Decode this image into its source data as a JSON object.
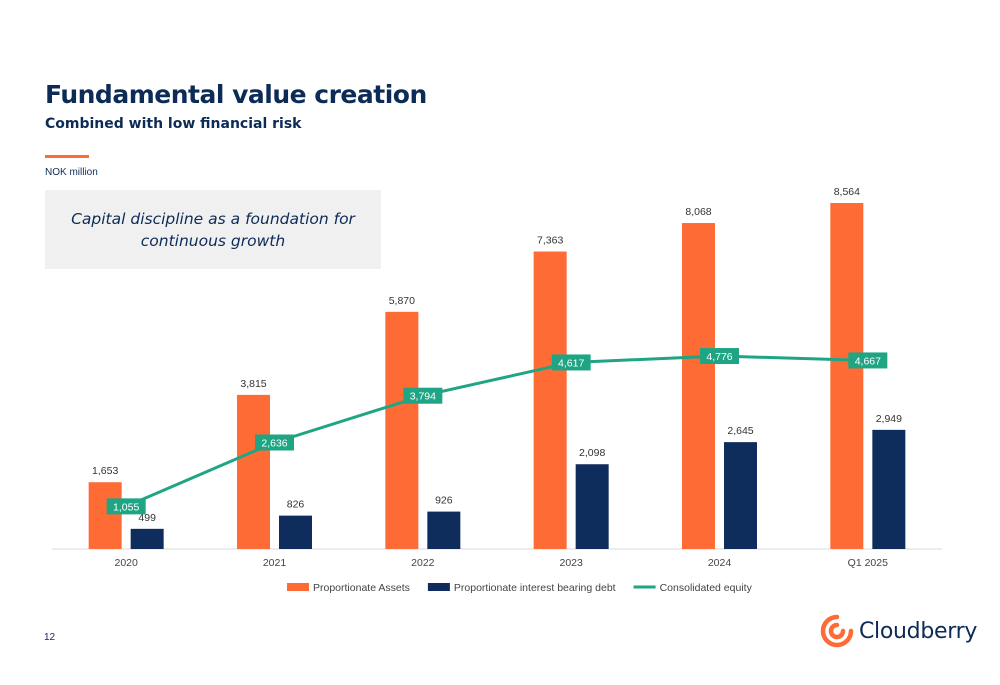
{
  "title": "Fundamental value creation",
  "subtitle": "Combined with low financial risk",
  "units": "NOK million",
  "callout": "Capital discipline as a foundation for continuous growth",
  "page_number": "12",
  "logo_text": "Cloudberry",
  "colors": {
    "assets": "#ff6b35",
    "debt": "#0f2d5c",
    "equity": "#1fa584",
    "accent": "#ff6b35",
    "text": "#0d2b57"
  },
  "chart_data": {
    "type": "bar",
    "title": "",
    "xlabel": "",
    "ylabel": "",
    "categories": [
      "2020",
      "2021",
      "2022",
      "2023",
      "2024",
      "Q1 2025"
    ],
    "series": [
      {
        "name": "Proportionate Assets",
        "type": "bar",
        "values": [
          1653,
          3815,
          5870,
          7363,
          8068,
          8564
        ],
        "labels": [
          "1,653",
          "3,815",
          "5,870",
          "7,363",
          "8,068",
          "8,564"
        ]
      },
      {
        "name": "Proportionate interest bearing debt",
        "type": "bar",
        "values": [
          499,
          826,
          926,
          2098,
          2645,
          2949
        ],
        "labels": [
          "499",
          "826",
          "926",
          "2,098",
          "2,645",
          "2,949"
        ]
      },
      {
        "name": "Consolidated equity",
        "type": "line",
        "values": [
          1055,
          2636,
          3794,
          4617,
          4776,
          4667
        ],
        "labels": [
          "1,055",
          "2,636",
          "3,794",
          "4,617",
          "4,776",
          "4,667"
        ]
      }
    ],
    "ylim": [
      0,
      8564
    ],
    "grid": false,
    "legend_position": "bottom"
  }
}
